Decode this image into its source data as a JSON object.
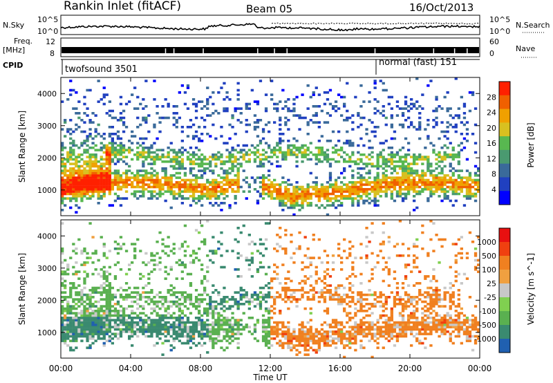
{
  "header": {
    "station": "Rankin Inlet (fitACF)",
    "beam": "Beam 05",
    "date": "16/Oct/2013"
  },
  "sky_panel": {
    "left_label": "N.Sky",
    "right_label": "N.Search",
    "left_ticks": [
      "10^5",
      "10^0"
    ],
    "right_ticks": [
      "10^5",
      "10^0"
    ]
  },
  "freq_panel": {
    "label_line1": "Freq.",
    "label_line2": "[MHz]",
    "left_ticks": [
      "12",
      "8"
    ],
    "right_ticks": [
      "60",
      "0"
    ],
    "right_label": "Nave"
  },
  "cpid": {
    "label": "CPID",
    "mode1": "twofsound 3501",
    "mode2": "normal (fast) 151"
  },
  "chart_data": [
    {
      "type": "heatmap",
      "name": "power",
      "ylabel": "Slant Range [km]",
      "yticks": [
        "1000",
        "2000",
        "3000",
        "4000"
      ],
      "ylim": [
        200,
        4500
      ],
      "colorbar_label": "Power [dB]",
      "colorbar_ticks": [
        "28",
        "24",
        "20",
        "16",
        "12",
        "8",
        "4"
      ],
      "colors": [
        "#0000ff",
        "#2040c0",
        "#3a6a9a",
        "#4a9a70",
        "#58b850",
        "#d8c020",
        "#f0a000",
        "#f06000",
        "#ff2000"
      ]
    },
    {
      "type": "heatmap",
      "name": "velocity",
      "ylabel": "Slant Range [km]",
      "yticks": [
        "1000",
        "2000",
        "3000",
        "4000"
      ],
      "ylim": [
        200,
        4500
      ],
      "colorbar_label": "Velocity [m s^-1]",
      "colorbar_ticks": [
        "1000",
        "500",
        "100",
        "25",
        "-25",
        "-100",
        "-500",
        "-1000"
      ],
      "colors": [
        "#2060b0",
        "#3a8a70",
        "#5ab050",
        "#80d050",
        "#c8c8c8",
        "#f0a040",
        "#f08020",
        "#f04010",
        "#e81010"
      ]
    }
  ],
  "x_axis": {
    "label": "Time UT",
    "ticks": [
      "00:00",
      "04:00",
      "08:00",
      "12:00",
      "16:00",
      "20:00",
      "00:00"
    ]
  }
}
